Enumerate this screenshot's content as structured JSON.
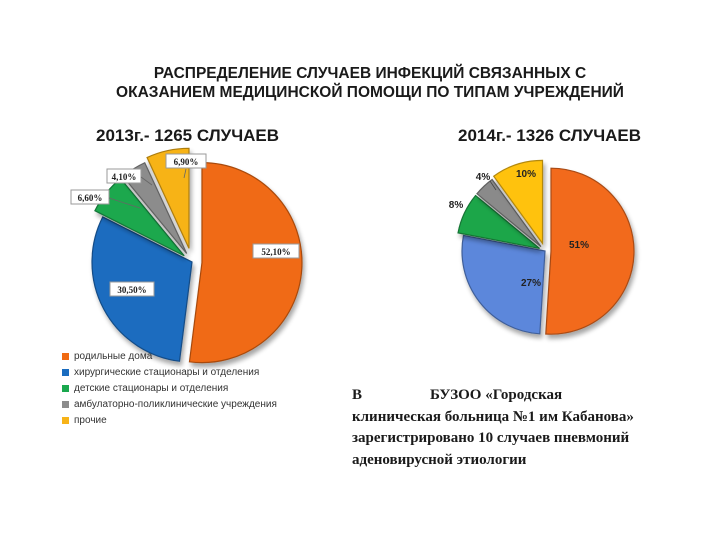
{
  "title": {
    "line1": "РАСПРЕДЕЛЕНИЕ СЛУЧАЕВ ИНФЕКЦИЙ СВЯЗАННЫХ С",
    "line2": "ОКАЗАНИЕМ МЕДИЦИНСКОЙ ПОМОЩИ ПО ТИПАМ УЧРЕЖДЕНИЙ"
  },
  "chart_data": [
    {
      "type": "pie",
      "title": "2013г.- 1265 СЛУЧАЕВ",
      "categories": [
        "родильные дома",
        "хирургические стационары и отделения",
        "детские стационары и отделения",
        "амбулаторно-поликлинические учреждения",
        "прочие"
      ],
      "values": [
        52.1,
        30.5,
        6.6,
        4.1,
        6.9
      ],
      "labels": [
        "52,10%",
        "30,50%",
        "6,60%",
        "4,10%",
        "6,90%"
      ],
      "colors": [
        "#f06a12",
        "#1a6cbf",
        "#1aa84e",
        "#8c8c8c",
        "#f7b318"
      ],
      "legend": "bottom-left"
    },
    {
      "type": "pie",
      "title": "2014г.- 1326 СЛУЧАЕВ",
      "categories": [
        "родильные дома",
        "хирургические стационары и отделения",
        "детские стационары и отделения",
        "амбулаторно-поликлинические учреждения",
        "прочие"
      ],
      "values": [
        51,
        27,
        8,
        4,
        10
      ],
      "labels": [
        "51%",
        "27%",
        "8%",
        "4%",
        "10%"
      ],
      "colors": [
        "#f26b1d",
        "#5b87db",
        "#1ca64a",
        "#8a8a8a",
        "#ffc20e"
      ]
    }
  ],
  "legend": {
    "items": [
      {
        "label": "родильные дома",
        "color": "#f06a12"
      },
      {
        "label": "хирургические стационары и отделения",
        "color": "#1a6cbf"
      },
      {
        "label": "детские стационары и отделения",
        "color": "#1aa84e"
      },
      {
        "label": "амбулаторно-поликлинические учреждения",
        "color": "#8c8c8c"
      },
      {
        "label": "прочие",
        "color": "#f7b318"
      }
    ]
  },
  "note": {
    "w1": "В",
    "w2": "БУЗОО «Городская",
    "line2": "клиническая больница №1 им Кабанова»",
    "line3": "зарегистрировано 10 случаев пневмоний",
    "line4": "аденовирусной этиологии"
  }
}
